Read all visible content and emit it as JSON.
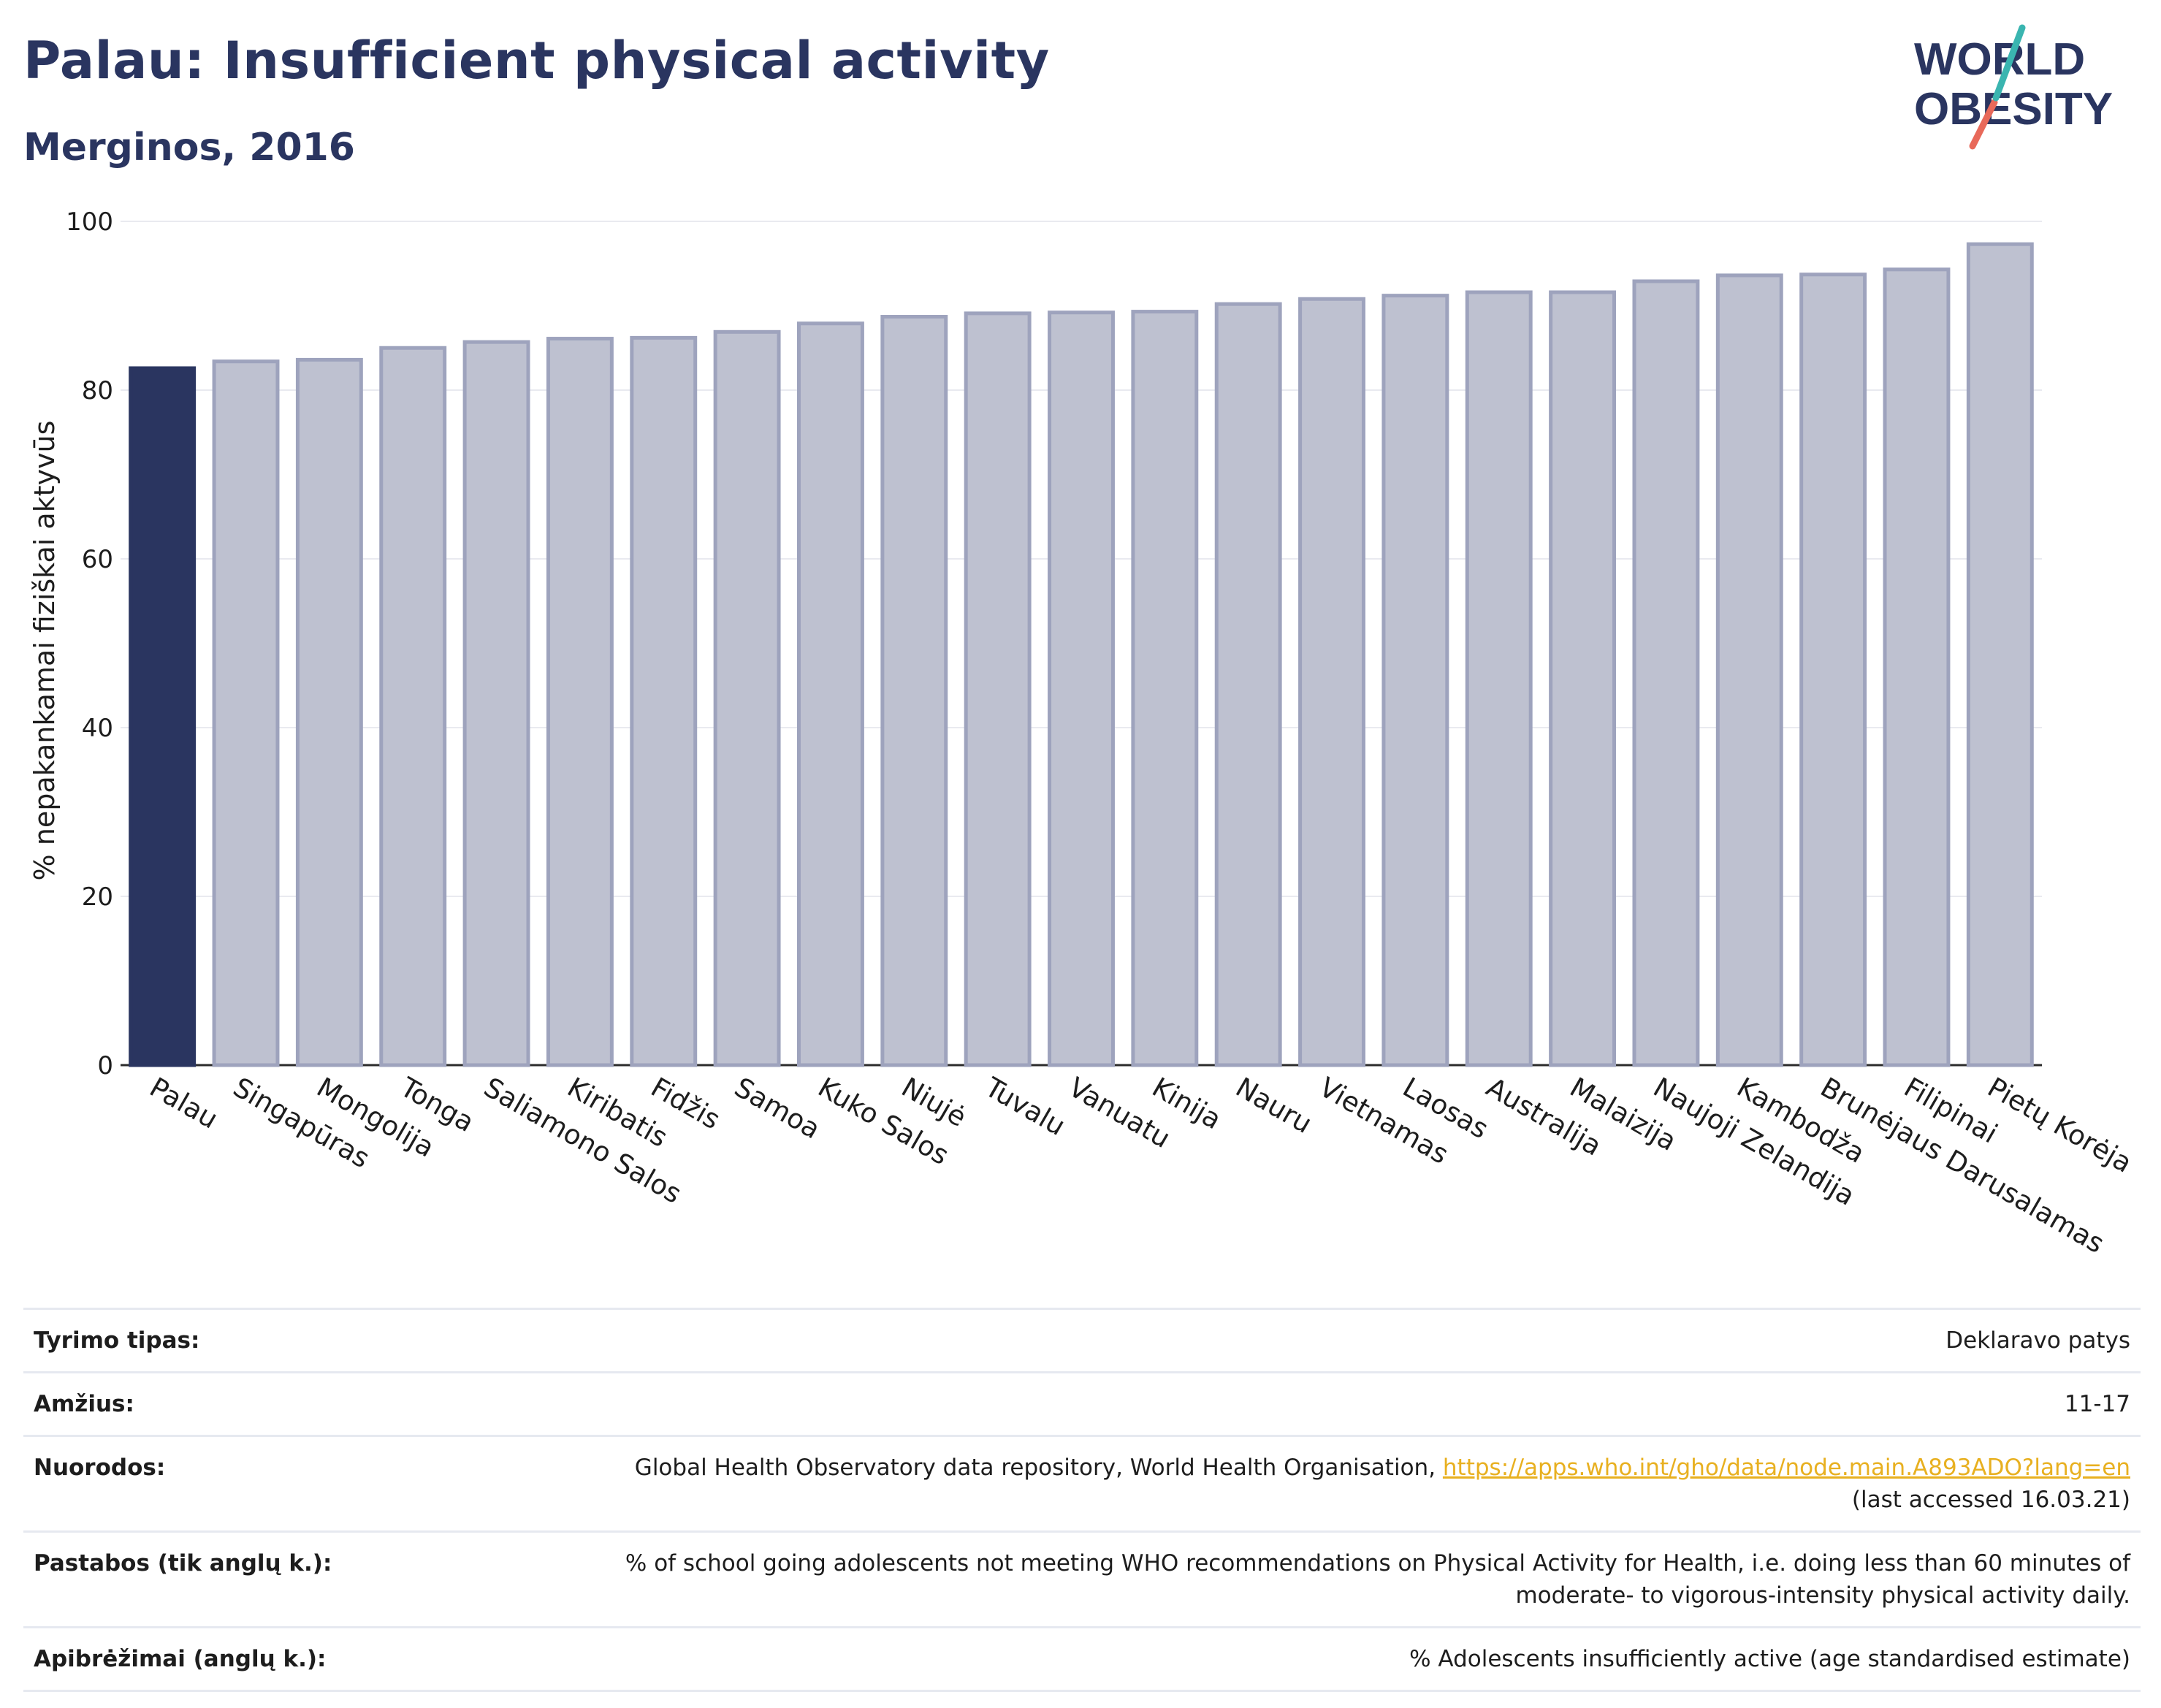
{
  "header": {
    "title": "Palau: Insufficient physical activity",
    "subtitle": "Merginos, 2016"
  },
  "logo": {
    "line1": "WORLD",
    "line2": "OBESITY"
  },
  "chart_data": {
    "type": "bar",
    "ylabel": "% nepakankamai fiziškai aktyvūs",
    "ylim": [
      0,
      100
    ],
    "yticks": [
      0,
      20,
      40,
      60,
      80,
      100
    ],
    "grid": true,
    "highlight": "Palau",
    "colors": {
      "highlight": "#2a3560",
      "bar_fill": "#bec1d0",
      "bar_stroke": "#9ea3bd"
    },
    "categories": [
      "Palau",
      "Singapūras",
      "Mongolija",
      "Tonga",
      "Saliamono Salos",
      "Kiribatis",
      "Fidžis",
      "Samoa",
      "Kuko Salos",
      "Niujė",
      "Tuvalu",
      "Vanuatu",
      "Kinija",
      "Nauru",
      "Vietnamas",
      "Laosas",
      "Australija",
      "Malaizija",
      "Naujoji Zelandija",
      "Kambodža",
      "Brunėjaus Darusalamas",
      "Filipinai",
      "Pietų Korėja"
    ],
    "values": [
      82.6,
      83.4,
      83.6,
      85.0,
      85.7,
      86.1,
      86.2,
      86.9,
      87.9,
      88.7,
      89.1,
      89.2,
      89.3,
      90.2,
      90.8,
      91.2,
      91.6,
      91.6,
      92.9,
      93.6,
      93.7,
      94.3,
      97.3
    ]
  },
  "info": {
    "rows": [
      {
        "key": "Tyrimo tipas:",
        "value": "Deklaravo patys"
      },
      {
        "key": "Amžius:",
        "value": "11-17"
      },
      {
        "key": "Nuorodos:",
        "value": "Global Health Observatory data repository, World Health Organisation, ",
        "link": "https://apps.who.int/gho/data/node.main.A893ADO?lang=en",
        "value2": "(last accessed 16.03.21)"
      },
      {
        "key": "Pastabos (tik anglų k.):",
        "value": "% of school going adolescents not meeting WHO recommendations on Physical Activity for Health, i.e. doing less than 60 minutes of",
        "value2": "moderate- to vigorous-intensity physical activity daily."
      },
      {
        "key": "Apibrėžimai (anglų k.):",
        "value": "% Adolescents insufficiently active (age standardised estimate)"
      }
    ]
  }
}
